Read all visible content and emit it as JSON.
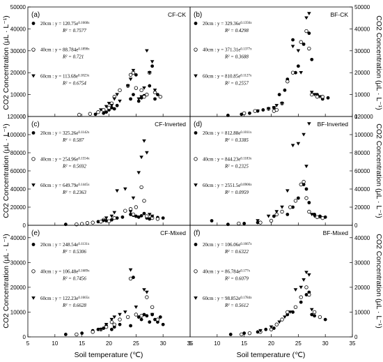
{
  "chart_data": [
    {
      "label": "(a)",
      "title": "CF-CK",
      "type": "scatter",
      "xlim": [
        5,
        35
      ],
      "ylim": [
        0,
        50000
      ],
      "y_ticks": [
        0,
        10000,
        20000,
        30000,
        40000,
        50000
      ],
      "series": [
        {
          "name": "20cm",
          "equation": "y = 120.75e^0.1668x",
          "r2": "R² = 0.7577",
          "x": [
            17.5,
            19.0,
            19.5,
            20.0,
            20.5,
            21.0,
            21.5,
            24.0,
            24.5,
            25.0,
            25.5,
            26.0,
            26.5,
            27.0,
            27.5,
            28.0,
            28.5,
            29.0
          ],
          "y": [
            1000,
            1500,
            2000,
            3000,
            4000,
            3500,
            5000,
            8000,
            10000,
            19000,
            7000,
            8500,
            9500,
            10000,
            14000,
            23000,
            8000,
            10000
          ]
        },
        {
          "name": "40cm",
          "equation": "y = 88.784e^0.1898x",
          "r2": "R² = 0.721",
          "x": [
            14.5,
            16.5,
            18.0,
            19.0,
            20.0,
            20.5,
            21.0,
            22.0,
            23.5,
            24.0,
            24.5,
            25.0,
            26.0,
            26.5,
            27.0,
            27.5,
            28.5,
            29.5
          ],
          "y": [
            800,
            1200,
            2000,
            3000,
            4000,
            6000,
            9000,
            12000,
            14000,
            19000,
            20000,
            13000,
            12000,
            9000,
            10000,
            20000,
            11000,
            9000
          ]
        },
        {
          "name": "60cm",
          "equation": "y = 113.68e^0.1823x",
          "r2": "R² = 0.6754",
          "x": [
            18.5,
            19.5,
            20.0,
            20.5,
            21.0,
            21.5,
            22.0,
            23.5,
            24.0,
            24.5,
            25.5,
            26.0,
            26.5,
            27.0,
            27.5,
            28.0,
            28.5
          ],
          "y": [
            3000,
            4500,
            6000,
            5000,
            8000,
            10000,
            7000,
            14000,
            17000,
            21000,
            8000,
            9000,
            13000,
            30000,
            20000,
            25000,
            12000
          ]
        }
      ]
    },
    {
      "label": "(b)",
      "title": "BF-CK",
      "type": "scatter",
      "xlim": [
        5,
        35
      ],
      "ylim": [
        0,
        50000
      ],
      "y_ticks": [
        0,
        10000,
        20000,
        30000,
        40000,
        50000
      ],
      "series": [
        {
          "name": "20cm",
          "equation": "y = 329.36e^0.1356x",
          "r2": "R² = 0.4298",
          "x": [
            12.0,
            14.5,
            16.0,
            17.5,
            18.5,
            20.5,
            21.5,
            22.5,
            23.0,
            24.0,
            24.5,
            25.0,
            26.0,
            27.0,
            27.5,
            28.5,
            29.5,
            30.5
          ],
          "y": [
            500,
            1000,
            1500,
            2500,
            3000,
            4000,
            10000,
            12000,
            17000,
            35000,
            20000,
            23000,
            33000,
            38000,
            26000,
            10000,
            8000,
            8500
          ]
        },
        {
          "name": "40cm",
          "equation": "y = 371.31e^0.1377x",
          "r2": "R² = 0.3688",
          "x": [
            15.0,
            17.0,
            19.5,
            20.5,
            21.0,
            22.0,
            23.0,
            24.0,
            25.5,
            26.5,
            27.0,
            27.5,
            28.5,
            29.5
          ],
          "y": [
            1500,
            2500,
            3500,
            2500,
            3000,
            6000,
            16000,
            20000,
            34000,
            39000,
            31000,
            10000,
            9000,
            9000
          ]
        },
        {
          "name": "60cm",
          "equation": "y = 810.85e^0.1127x",
          "r2": "R² = 0.2557",
          "x": [
            17.5,
            19.5,
            20.5,
            21.0,
            22.0,
            24.0,
            25.0,
            25.5,
            26.5,
            27.0,
            27.5,
            28.0,
            29.0
          ],
          "y": [
            2500,
            3500,
            4000,
            5000,
            6000,
            32000,
            30000,
            20000,
            45000,
            47000,
            11000,
            10000,
            9000
          ]
        }
      ]
    },
    {
      "label": "(c)",
      "title": "CF-Inverted",
      "type": "scatter",
      "xlim": [
        5,
        35
      ],
      "ylim": [
        0,
        120000
      ],
      "y_ticks": [
        0,
        20000,
        40000,
        60000,
        80000,
        100000,
        120000
      ],
      "series": [
        {
          "name": "20cm",
          "equation": "y = 325.26e^0.1142x",
          "r2": "R² = 0.587",
          "x": [
            12.0,
            17.0,
            18.0,
            19.5,
            20.5,
            21.5,
            22.5,
            24.0,
            24.5,
            25.0,
            25.5,
            26.0,
            26.5,
            27.0,
            27.5,
            28.0,
            29.0,
            30.0
          ],
          "y": [
            1000,
            3000,
            4000,
            5000,
            6000,
            8000,
            9000,
            12000,
            11000,
            10000,
            9000,
            10500,
            13000,
            8000,
            7000,
            9000,
            8500,
            8000
          ]
        },
        {
          "name": "40cm",
          "equation": "y = 254.96e^0.1554x",
          "r2": "R² = 0.5692",
          "x": [
            14.0,
            15.0,
            16.0,
            17.0,
            18.5,
            19.0,
            20.0,
            21.0,
            23.0,
            24.0,
            24.5,
            25.0,
            26.0,
            26.5,
            27.0,
            28.0,
            29.0
          ],
          "y": [
            1000,
            1500,
            2500,
            3000,
            4000,
            6000,
            4500,
            8000,
            16000,
            18000,
            12000,
            20000,
            42000,
            27000,
            10000,
            8000,
            7000
          ]
        },
        {
          "name": "60cm",
          "equation": "y = 649.79e^0.1445x",
          "r2": "R² = 0.2363",
          "x": [
            19.0,
            19.5,
            20.5,
            21.0,
            21.5,
            23.0,
            24.0,
            24.5,
            25.5,
            26.0,
            26.5,
            27.0,
            27.5,
            28.0
          ],
          "y": [
            5000,
            8000,
            10000,
            14000,
            38000,
            40000,
            15000,
            30000,
            58000,
            75000,
            93000,
            80000,
            12000,
            10000
          ]
        }
      ]
    },
    {
      "label": "(d)",
      "title": "BF-Inverted",
      "type": "scatter",
      "xlim": [
        5,
        35
      ],
      "ylim": [
        0,
        120000
      ],
      "y_ticks": [
        0,
        20000,
        40000,
        60000,
        80000,
        100000,
        120000
      ],
      "series": [
        {
          "name": "20cm",
          "equation": "y = 812.88e^0.1011x",
          "r2": "R² = 0.3385",
          "x": [
            9.0,
            12.0,
            15.0,
            17.5,
            20.5,
            22.0,
            23.0,
            24.0,
            25.0,
            26.0,
            26.5,
            27.0,
            28.0,
            29.0,
            30.0
          ],
          "y": [
            5000,
            1000,
            2000,
            3000,
            10000,
            15000,
            12000,
            20000,
            30000,
            45000,
            40000,
            25000,
            12000,
            10000,
            9000
          ]
        },
        {
          "name": "40cm",
          "equation": "y = 844.23e^0.1183x",
          "r2": "R² = 0.2325",
          "x": [
            14.0,
            18.0,
            20.0,
            21.0,
            22.0,
            23.5,
            24.5,
            25.5,
            26.0,
            26.5,
            27.0,
            28.5,
            29.5
          ],
          "y": [
            2000,
            3000,
            5000,
            12000,
            15000,
            20000,
            27000,
            45000,
            48000,
            30000,
            15000,
            9000,
            8000
          ]
        },
        {
          "name": "60cm",
          "equation": "y = 2551.5e^0.0906x",
          "r2": "R² = 0.0959",
          "x": [
            17.5,
            19.5,
            21.0,
            22.0,
            23.0,
            24.0,
            25.0,
            26.0,
            26.5,
            27.0,
            27.5,
            28.0,
            29.0
          ],
          "y": [
            5000,
            10000,
            15000,
            20000,
            38000,
            88000,
            90000,
            100000,
            65000,
            112000,
            12000,
            10000,
            9000
          ]
        }
      ]
    },
    {
      "label": "(e)",
      "title": "CF-Mixed",
      "type": "scatter",
      "xlim": [
        5,
        35
      ],
      "ylim": [
        0,
        45000
      ],
      "y_ticks": [
        0,
        10000,
        20000,
        30000,
        40000
      ],
      "series": [
        {
          "name": "20cm",
          "equation": "y = 248.54e^0.1131x",
          "r2": "R² = 0.5306",
          "x": [
            12.0,
            15.0,
            17.0,
            18.0,
            19.0,
            19.5,
            20.5,
            21.0,
            22.0,
            24.0,
            24.5,
            25.5,
            26.0,
            26.5,
            27.0,
            27.5,
            28.0,
            28.5,
            29.0,
            29.5,
            30.0
          ],
          "y": [
            1000,
            1500,
            2500,
            3000,
            3500,
            4500,
            3000,
            4000,
            5000,
            4500,
            24000,
            8000,
            7000,
            9000,
            8500,
            6000,
            9000,
            7000,
            6000,
            8000,
            5000
          ]
        },
        {
          "name": "40cm",
          "equation": "y = 106.48e^0.1689x",
          "r2": "R² = 0.7456",
          "x": [
            14.0,
            17.0,
            18.5,
            19.5,
            20.5,
            21.0,
            22.0,
            23.5,
            24.0,
            25.0,
            26.0,
            27.0,
            28.0,
            29.0
          ],
          "y": [
            1000,
            2000,
            3000,
            4000,
            6000,
            5000,
            7000,
            8000,
            23500,
            9000,
            8500,
            16000,
            12000,
            7000
          ]
        },
        {
          "name": "60cm",
          "equation": "y = 122.23e^0.1665x",
          "r2": "R² = 0.6628",
          "x": [
            18.5,
            19.5,
            20.5,
            21.0,
            22.0,
            23.0,
            24.0,
            25.0,
            26.5,
            27.0,
            28.0
          ],
          "y": [
            3000,
            5000,
            7000,
            8000,
            9000,
            10000,
            27000,
            12000,
            19000,
            18000,
            9000
          ]
        }
      ]
    },
    {
      "label": "(f)",
      "title": "BF-Mixed",
      "type": "scatter",
      "xlim": [
        5,
        35
      ],
      "ylim": [
        0,
        45000
      ],
      "y_ticks": [
        0,
        10000,
        20000,
        30000,
        40000
      ],
      "series": [
        {
          "name": "20cm",
          "equation": "y = 106.06e^0.1667x",
          "r2": "R² = 0.6322",
          "x": [
            12.5,
            15.0,
            17.5,
            19.0,
            20.5,
            21.0,
            22.0,
            23.0,
            24.0,
            25.5,
            26.5,
            27.0,
            27.5,
            28.0,
            29.0,
            30.0
          ],
          "y": [
            1000,
            1500,
            2000,
            3000,
            3500,
            5000,
            7000,
            9000,
            10000,
            14000,
            17000,
            18000,
            9000,
            8500,
            8000,
            7000
          ]
        },
        {
          "name": "40cm",
          "equation": "y = 86.784e^0.177x",
          "r2": "R² = 0.6079",
          "x": [
            14.5,
            16.0,
            18.0,
            20.0,
            21.0,
            22.0,
            23.0,
            24.5,
            25.5,
            26.5,
            27.0,
            28.0,
            29.0
          ],
          "y": [
            1000,
            1500,
            2000,
            3000,
            5000,
            7000,
            10000,
            12000,
            16000,
            20000,
            17000,
            10000,
            8000
          ]
        },
        {
          "name": "60cm",
          "equation": "y = 98.852e^0.1784x",
          "r2": "R² = 0.5612",
          "x": [
            18.0,
            20.0,
            21.5,
            22.5,
            23.5,
            24.5,
            25.5,
            26.0,
            26.5,
            27.0,
            27.5
          ],
          "y": [
            2500,
            4000,
            6000,
            8000,
            10000,
            19000,
            20000,
            23000,
            26000,
            25000,
            11000
          ]
        }
      ]
    }
  ],
  "axes": {
    "left_ylabel": "CO2 Concentration (μL · L⁻¹)",
    "right_ylabel": "CO2 Concentration (μL · L⁻¹)",
    "xlabel": "Soil temperature (℃)",
    "x_ticks": [
      5,
      10,
      15,
      20,
      25,
      30,
      35
    ]
  }
}
